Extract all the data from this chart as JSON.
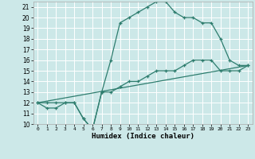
{
  "xlabel": "Humidex (Indice chaleur)",
  "bg_color": "#cce8e8",
  "grid_color": "#ffffff",
  "line_color": "#2e7d6e",
  "xlim": [
    -0.5,
    23.5
  ],
  "ylim": [
    10,
    21.5
  ],
  "yticks": [
    10,
    11,
    12,
    13,
    14,
    15,
    16,
    17,
    18,
    19,
    20,
    21
  ],
  "xticks": [
    0,
    1,
    2,
    3,
    4,
    5,
    6,
    7,
    8,
    9,
    10,
    11,
    12,
    13,
    14,
    15,
    16,
    17,
    18,
    19,
    20,
    21,
    22,
    23
  ],
  "series": [
    {
      "x": [
        0,
        1,
        2,
        3,
        4,
        5,
        6,
        7,
        8,
        9,
        10,
        11,
        12,
        13,
        14,
        15,
        16,
        17,
        18,
        19,
        20,
        21,
        22,
        23
      ],
      "y": [
        12,
        12,
        12,
        12,
        12,
        10.5,
        9.5,
        13,
        16,
        19.5,
        20,
        20.5,
        21,
        21.5,
        21.5,
        20.5,
        20,
        20,
        19.5,
        19.5,
        18,
        16,
        15.5,
        15.5
      ],
      "marker": true
    },
    {
      "x": [
        0,
        1,
        2,
        3,
        4,
        5,
        6,
        7,
        8,
        9,
        10,
        11,
        12,
        13,
        14,
        15,
        16,
        17,
        18,
        19,
        20,
        21,
        22,
        23
      ],
      "y": [
        12,
        11.5,
        11.5,
        12,
        12,
        10.5,
        9.5,
        13,
        13,
        13.5,
        14,
        14,
        14.5,
        15,
        15,
        15,
        15.5,
        16,
        16,
        16,
        15,
        15,
        15,
        15.5
      ],
      "marker": true
    },
    {
      "x": [
        0,
        23
      ],
      "y": [
        12,
        15.5
      ],
      "marker": false
    }
  ]
}
